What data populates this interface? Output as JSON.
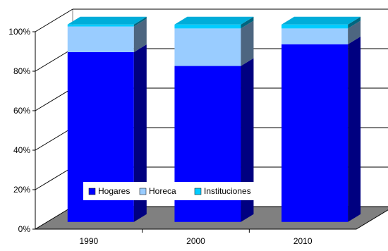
{
  "chart_data": {
    "type": "bar",
    "stacked": "percent",
    "three_d": true,
    "categories": [
      "1990",
      "2000",
      "2010"
    ],
    "series": [
      {
        "name": "Hogares",
        "color": "#0000ff",
        "values": [
          86,
          79,
          90
        ]
      },
      {
        "name": "Horeca",
        "color": "#99ccff",
        "values": [
          13,
          19,
          8
        ]
      },
      {
        "name": "Instituciones",
        "color": "#00ccff",
        "values": [
          1,
          2,
          2
        ]
      }
    ],
    "ylim": [
      0,
      100
    ],
    "ytick_labels": [
      "0%",
      "20%",
      "40%",
      "60%",
      "80%",
      "100%"
    ],
    "grid": true,
    "legend_position": "inside-bottom-left",
    "floor_color": "#808080",
    "title": "",
    "xlabel": "",
    "ylabel": ""
  }
}
